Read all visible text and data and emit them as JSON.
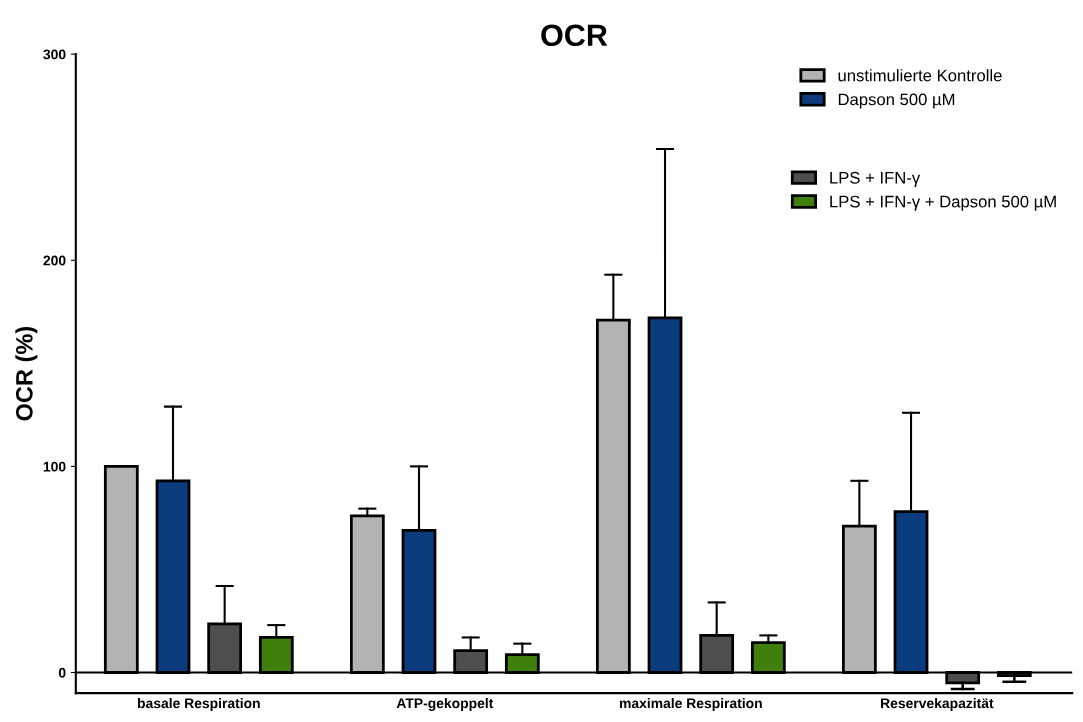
{
  "chart_data": {
    "type": "bar",
    "title": "OCR",
    "ylabel": "OCR (%)",
    "categories": [
      "basale Respiration",
      "ATP-gekoppelt",
      "maximale Respiration",
      "Reservekapazität"
    ],
    "series": [
      {
        "name": "unstimulierte Kontrolle",
        "color": "#b3b3b3",
        "values": [
          100,
          76,
          171,
          71
        ],
        "errors": [
          [
            100,
            100
          ],
          [
            76,
            79.5
          ],
          [
            171,
            193
          ],
          [
            71,
            93
          ]
        ]
      },
      {
        "name": "Dapson 500 µM",
        "color": "#0b3d7e",
        "values": [
          93,
          69,
          172,
          78
        ],
        "errors": [
          [
            93,
            129
          ],
          [
            69,
            100
          ],
          [
            172,
            254
          ],
          [
            78,
            126
          ]
        ]
      },
      {
        "name": "LPS + IFN-γ",
        "color": "#4d4f4f",
        "values": [
          23.6,
          10.6,
          18,
          -5
        ],
        "errors": [
          [
            23.6,
            42
          ],
          [
            10.6,
            17
          ],
          [
            18,
            34
          ],
          [
            -8,
            -5
          ]
        ]
      },
      {
        "name": "LPS + IFN-γ + Dapson 500 µM",
        "color": "#3f7f0b",
        "values": [
          17,
          8.7,
          14.5,
          -1.5
        ],
        "errors": [
          [
            17,
            23
          ],
          [
            8.7,
            14
          ],
          [
            14.5,
            18
          ],
          [
            -4.5,
            -1.5
          ]
        ]
      }
    ],
    "ylim": [
      -10,
      300
    ],
    "yticks": [
      0,
      100,
      200,
      300
    ],
    "ref_lines": [
      {
        "axis": "y",
        "value": 0,
        "label": null,
        "color": "#000000"
      }
    ],
    "grid": false,
    "legend": "top right"
  }
}
